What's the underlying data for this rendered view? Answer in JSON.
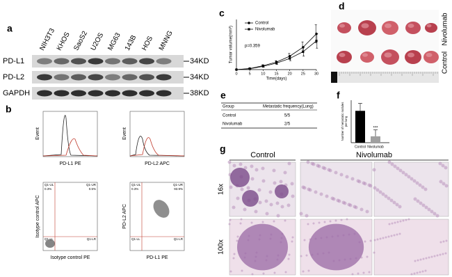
{
  "panel_labels": [
    "a",
    "b",
    "c",
    "d",
    "e",
    "f",
    "g"
  ],
  "western_blot": {
    "lanes": [
      "NIH3T3",
      "KHOS",
      "SaoS2",
      "U2OS",
      "MG63",
      "143B",
      "HOS",
      "MNNG"
    ],
    "rows": [
      {
        "name": "PD-L1",
        "size": "34KD"
      },
      {
        "name": "PD-L2",
        "size": "34KD"
      },
      {
        "name": "GAPDH",
        "size": "38KD"
      }
    ]
  },
  "flow": {
    "histograms": [
      {
        "y_label": "Event",
        "x_label": "PD-L1 PE"
      },
      {
        "y_label": "Event",
        "x_label": "PD-L2 APC"
      }
    ],
    "dot_plots": [
      {
        "y_label": "Isotype control APC",
        "x_label": "Isotype control PE",
        "quadrants": [
          "Q1-UL",
          "0.3%",
          "Q1-UR",
          "0.5%",
          "Q1-LL",
          "Q1-LR"
        ]
      },
      {
        "y_label": "PD-L2 APC",
        "x_label": "PD-L1 PE",
        "quadrants": [
          "Q1-UL",
          "0.3%",
          "Q1-UR",
          "93.9%",
          "Q1-LL",
          "Q1-LR"
        ]
      }
    ]
  },
  "tumor_growth": {
    "type": "line",
    "y_label": "Tumor volume(mm³)",
    "x_label": "Time(days)",
    "annotation": "p=0.359",
    "x": [
      0,
      5,
      10,
      15,
      20,
      25,
      30
    ],
    "xlim": [
      0,
      30
    ],
    "xticks": [
      0,
      5,
      10,
      15,
      20,
      25,
      30
    ],
    "ylim": [
      0,
      2800
    ],
    "series": [
      {
        "name": "Control",
        "color": "#000000",
        "marker": "circle",
        "values": [
          0,
          60,
          220,
          420,
          750,
          1250,
          2000
        ],
        "errors": [
          0,
          20,
          50,
          80,
          150,
          300,
          500
        ]
      },
      {
        "name": "Nivolumab",
        "color": "#000000",
        "marker": "square",
        "values": [
          0,
          50,
          180,
          360,
          620,
          1000,
          1600
        ],
        "errors": [
          0,
          20,
          40,
          70,
          120,
          250,
          400
        ]
      }
    ]
  },
  "tumor_photos": {
    "groups": [
      "Nivolumab",
      "Control"
    ]
  },
  "metastasis_table": {
    "header": [
      "Group",
      "Metastatic frequency(Lung)"
    ],
    "rows": [
      [
        "Control",
        "5/5"
      ],
      [
        "Nivolumab",
        "2/5"
      ]
    ]
  },
  "nodule_chart": {
    "type": "bar",
    "y_label": [
      "Number of metastatic nodules",
      "per lung"
    ],
    "annotation": "***",
    "categories": [
      "Control",
      "Nivolumab"
    ],
    "values": [
      15,
      3
    ],
    "errors": [
      3.5,
      3
    ],
    "colors": [
      "#000000",
      "#a0a0a0"
    ],
    "ylim": [
      0,
      20
    ]
  },
  "histology": {
    "columns": [
      "Control",
      "Nivolumab"
    ],
    "rows": [
      "16x",
      "100x"
    ]
  }
}
